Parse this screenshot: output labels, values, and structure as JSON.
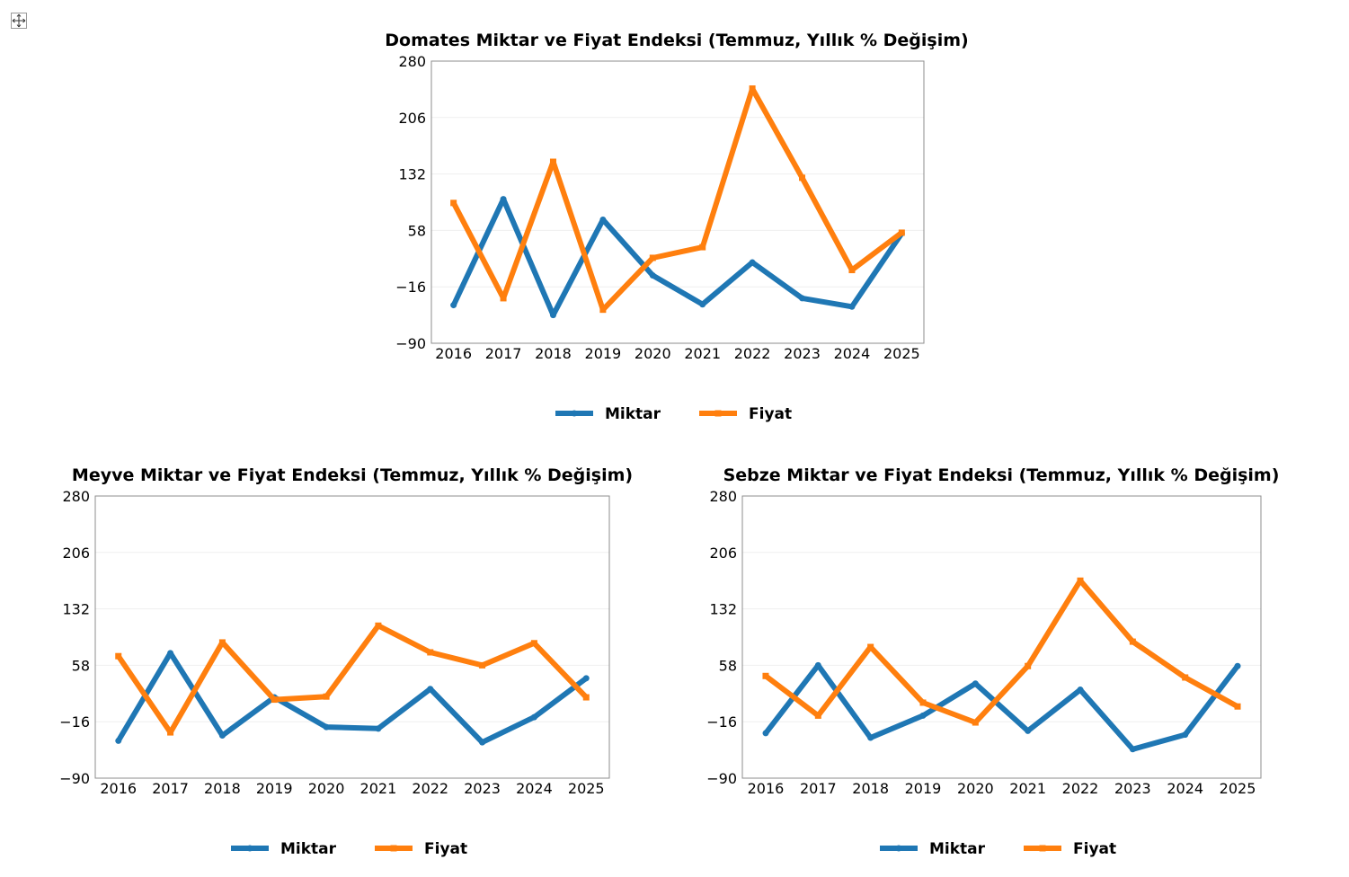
{
  "colors": {
    "miktar": "#1f77b4",
    "fiyat": "#ff7f0e"
  },
  "chart_data": [
    {
      "id": "domates",
      "type": "line",
      "title": "Domates Miktar ve Fiyat Endeksi (Temmuz, Yıllık % Değişim)",
      "categories": [
        "2016",
        "2017",
        "2018",
        "2019",
        "2020",
        "2021",
        "2022",
        "2023",
        "2024",
        "2025"
      ],
      "yticks": [
        "280",
        "206",
        "132",
        "58",
        "−16",
        "−90"
      ],
      "ylim": [
        -90,
        280
      ],
      "grid": true,
      "legend": "bottom-center",
      "series": [
        {
          "name": "Miktar",
          "marker": "circle",
          "values": [
            -40,
            99,
            -53,
            72,
            -1,
            -39,
            16,
            -31,
            -42,
            54
          ]
        },
        {
          "name": "Fiyat",
          "marker": "square",
          "values": [
            94,
            -31,
            148,
            -46,
            22,
            36,
            244,
            127,
            6,
            55
          ]
        }
      ]
    },
    {
      "id": "meyve",
      "type": "line",
      "title": "Meyve Miktar ve Fiyat Endeksi (Temmuz, Yıllık % Değişim)",
      "categories": [
        "2016",
        "2017",
        "2018",
        "2019",
        "2020",
        "2021",
        "2022",
        "2023",
        "2024",
        "2025"
      ],
      "yticks": [
        "280",
        "206",
        "132",
        "58",
        "−16",
        "−90"
      ],
      "ylim": [
        -90,
        280
      ],
      "grid": true,
      "legend": "bottom-center",
      "series": [
        {
          "name": "Miktar",
          "marker": "circle",
          "values": [
            -41,
            74,
            -34,
            16,
            -23,
            -25,
            27,
            -43,
            -10,
            41
          ]
        },
        {
          "name": "Fiyat",
          "marker": "square",
          "values": [
            70,
            -30,
            88,
            13,
            17,
            110,
            75,
            58,
            87,
            16
          ]
        }
      ]
    },
    {
      "id": "sebze",
      "type": "line",
      "title": "Sebze Miktar ve Fiyat Endeksi (Temmuz, Yıllık % Değişim)",
      "categories": [
        "2016",
        "2017",
        "2018",
        "2019",
        "2020",
        "2021",
        "2022",
        "2023",
        "2024",
        "2025"
      ],
      "yticks": [
        "280",
        "206",
        "132",
        "58",
        "−16",
        "−90"
      ],
      "ylim": [
        -90,
        280
      ],
      "grid": true,
      "legend": "bottom-center",
      "series": [
        {
          "name": "Miktar",
          "marker": "circle",
          "values": [
            -31,
            58,
            -37,
            -8,
            34,
            -28,
            26,
            -52,
            -33,
            57
          ]
        },
        {
          "name": "Fiyat",
          "marker": "square",
          "values": [
            44,
            -8,
            82,
            9,
            -17,
            57,
            169,
            89,
            42,
            4
          ]
        }
      ]
    }
  ]
}
